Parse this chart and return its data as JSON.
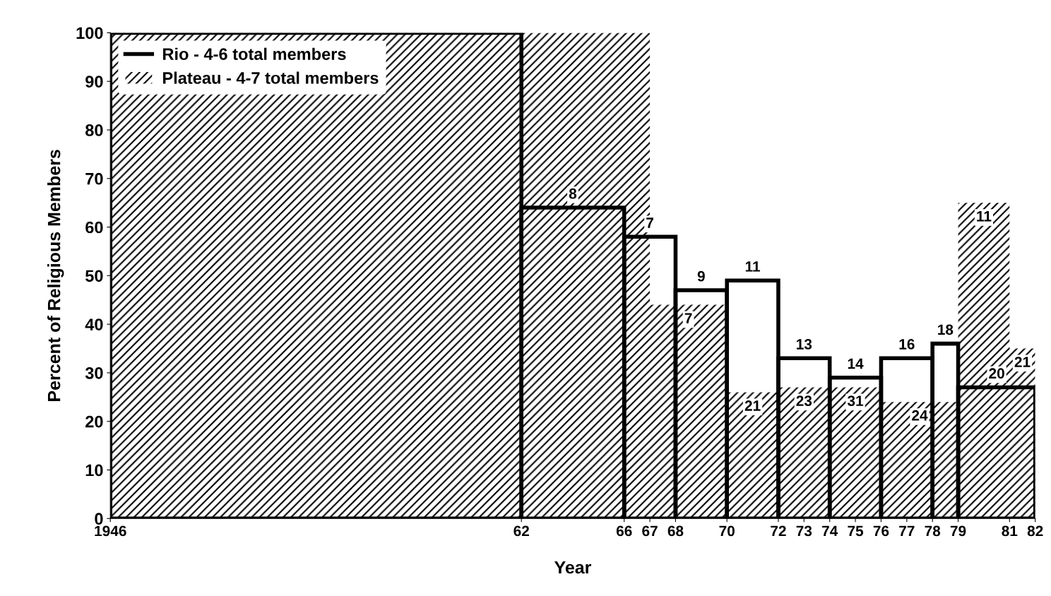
{
  "chart_data": {
    "type": "histogram",
    "xlabel": "Year",
    "ylabel": "Percent of Religious Members",
    "series": [
      {
        "name": "Rio - 4-6 total members",
        "color": "#000000",
        "bins": [
          1946,
          1962,
          1966,
          1968,
          1970,
          1972,
          1974,
          1976,
          1978,
          1979,
          1982
        ],
        "values": [
          100,
          64,
          58,
          47,
          49,
          33,
          29,
          33,
          36,
          27
        ]
      },
      {
        "name": "Plateau - 4-7 total members",
        "type": "area",
        "color": "#000000",
        "x": [
          1946,
          1967,
          1970,
          1972,
          1974,
          1976,
          1979,
          1981,
          1982
        ],
        "values": [
          100,
          44,
          26,
          27,
          27,
          24,
          65,
          35,
          35
        ]
      }
    ],
    "annotations": [
      {
        "text": "8",
        "x": 1964,
        "y": 64
      },
      {
        "text": "7",
        "x": 1967,
        "y": 58
      },
      {
        "text": "9",
        "x": 1969,
        "y": 47
      },
      {
        "text": "11",
        "x": 1971,
        "y": 49
      },
      {
        "text": "13",
        "x": 1973,
        "y": 33
      },
      {
        "text": "14",
        "x": 1975,
        "y": 29
      },
      {
        "text": "16",
        "x": 1977,
        "y": 33
      },
      {
        "text": "18",
        "x": 1978.5,
        "y": 36
      },
      {
        "text": "20",
        "x": 1980.5,
        "y": 27
      },
      {
        "text": "7",
        "x": 1968.5,
        "y": 44
      },
      {
        "text": "21",
        "x": 1971,
        "y": 26
      },
      {
        "text": "23",
        "x": 1973,
        "y": 27
      },
      {
        "text": "31",
        "x": 1975,
        "y": 27
      },
      {
        "text": "24",
        "x": 1977.5,
        "y": 24
      },
      {
        "text": "11",
        "x": 1980,
        "y": 65
      },
      {
        "text": "21",
        "x": 1981.5,
        "y": 35
      }
    ],
    "xlim": [
      1946,
      1982
    ],
    "xticks": [
      1946,
      {
        "value": 1962,
        "label": "62"
      },
      {
        "value": 1966,
        "label": "66"
      },
      {
        "value": 1967,
        "label": "67"
      },
      {
        "value": 1968,
        "label": "68"
      },
      {
        "value": 1970,
        "label": "70"
      },
      {
        "value": 1972,
        "label": "72"
      },
      {
        "value": 1973,
        "label": "73"
      },
      {
        "value": 1974,
        "label": "74"
      },
      {
        "value": 1975,
        "label": "75"
      },
      {
        "value": 1976,
        "label": "76"
      },
      {
        "value": 1977,
        "label": "77"
      },
      {
        "value": 1978,
        "label": "78"
      },
      {
        "value": 1979,
        "label": "79"
      },
      {
        "value": 1981,
        "label": "81"
      },
      {
        "value": 1982,
        "label": "82"
      }
    ],
    "ylim": [
      0,
      100
    ],
    "yticks": [
      0,
      10,
      20,
      30,
      40,
      50,
      60,
      70,
      80,
      90,
      100
    ],
    "legend": "top left",
    "grid": false
  }
}
